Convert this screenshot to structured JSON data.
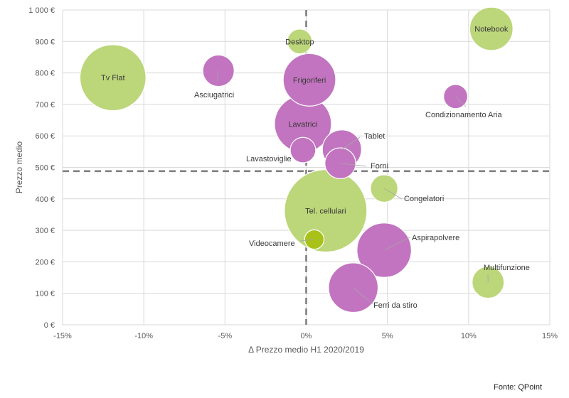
{
  "source": "Fonte: QPoint",
  "colors": {
    "green": "#bcd67a",
    "purple": "#c274c0",
    "olive": "#a8c21a",
    "grid": "#d9d9d9",
    "refline": "#7f7f7f"
  },
  "chart_data": {
    "type": "bubble",
    "xlabel": "Δ Prezzo medio H1 2020/2019",
    "ylabel": "Prezzo medio",
    "xlim": [
      -0.15,
      0.15
    ],
    "ylim": [
      0,
      1000
    ],
    "x_ticks": [
      {
        "v": -0.15,
        "label": "-15%"
      },
      {
        "v": -0.1,
        "label": "-10%"
      },
      {
        "v": -0.05,
        "label": "-5%"
      },
      {
        "v": 0,
        "label": "0%"
      },
      {
        "v": 0.05,
        "label": "5%"
      },
      {
        "v": 0.1,
        "label": "10%"
      },
      {
        "v": 0.15,
        "label": "15%"
      }
    ],
    "y_ticks": [
      {
        "v": 0,
        "label": "0 €"
      },
      {
        "v": 100,
        "label": "100 €"
      },
      {
        "v": 200,
        "label": "200 €"
      },
      {
        "v": 300,
        "label": "300 €"
      },
      {
        "v": 400,
        "label": "400 €"
      },
      {
        "v": 500,
        "label": "500 €"
      },
      {
        "v": 600,
        "label": "600 €"
      },
      {
        "v": 700,
        "label": "700 €"
      },
      {
        "v": 800,
        "label": "800 €"
      },
      {
        "v": 900,
        "label": "900 €"
      },
      {
        "v": 1000,
        "label": "1 000 €"
      }
    ],
    "reference_lines": {
      "x": 0,
      "y": 488
    },
    "grid": true,
    "points": [
      {
        "name": "Notebook",
        "x": 0.114,
        "y": 940,
        "size": 0.55,
        "color": "green"
      },
      {
        "name": "Desktop",
        "x": -0.004,
        "y": 900,
        "size": 0.18,
        "color": "green"
      },
      {
        "name": "Tv Flat",
        "x": -0.119,
        "y": 785,
        "size": 1.28,
        "color": "green"
      },
      {
        "name": "Asciugatrici",
        "x": -0.054,
        "y": 807,
        "size": 0.29,
        "color": "purple"
      },
      {
        "name": "Frigoriferi",
        "x": 0.002,
        "y": 778,
        "size": 0.81,
        "color": "purple"
      },
      {
        "name": "Condizionamento Aria",
        "x": 0.092,
        "y": 725,
        "size": 0.17,
        "color": "purple"
      },
      {
        "name": "Lavatrici",
        "x": -0.002,
        "y": 638,
        "size": 0.95,
        "color": "purple"
      },
      {
        "name": "Tablet",
        "x": 0.022,
        "y": 557,
        "size": 0.45,
        "color": "purple"
      },
      {
        "name": "Lavastoviglie",
        "x": -0.002,
        "y": 555,
        "size": 0.19,
        "color": "purple"
      },
      {
        "name": "Forni",
        "x": 0.021,
        "y": 513,
        "size": 0.28,
        "color": "purple"
      },
      {
        "name": "Congelatori",
        "x": 0.048,
        "y": 433,
        "size": 0.22,
        "color": "green"
      },
      {
        "name": "Tel. cellulari",
        "x": 0.012,
        "y": 362,
        "size": 2.0,
        "color": "green"
      },
      {
        "name": "Videocamere",
        "x": 0.005,
        "y": 271,
        "size": 0.11,
        "color": "olive"
      },
      {
        "name": "Aspirapolvere",
        "x": 0.048,
        "y": 237,
        "size": 0.87,
        "color": "purple"
      },
      {
        "name": "Multifunzione",
        "x": 0.112,
        "y": 135,
        "size": 0.3,
        "color": "green"
      },
      {
        "name": "Ferri da stiro",
        "x": 0.029,
        "y": 118,
        "size": 0.72,
        "color": "purple"
      }
    ]
  }
}
